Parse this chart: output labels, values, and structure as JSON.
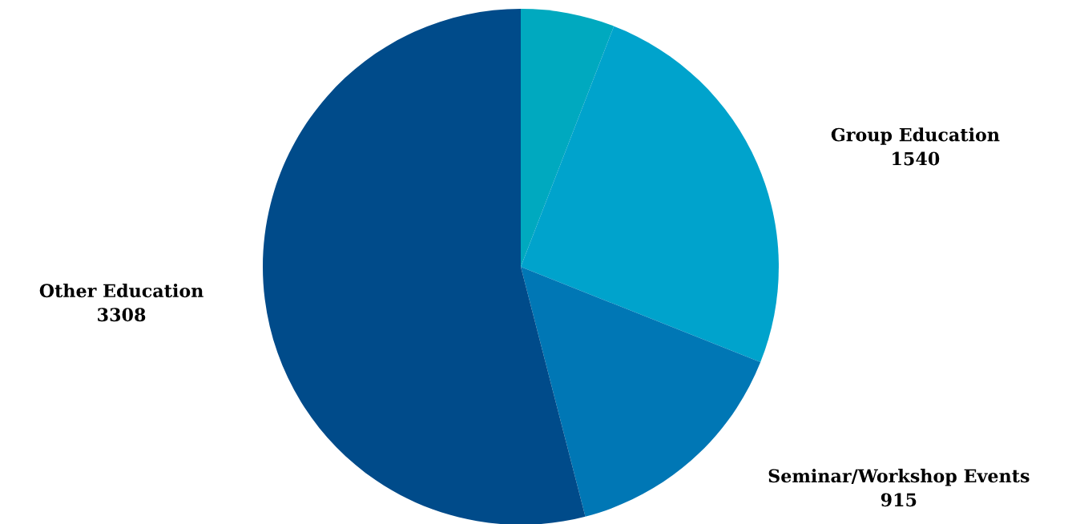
{
  "chart_data": {
    "type": "pie",
    "categories": [
      null,
      "Group Education",
      "Seminar/Workshop Events",
      "Other Education"
    ],
    "values": [
      360,
      1540,
      915,
      3308
    ],
    "value_labels": [
      null,
      "1540",
      "915",
      "3308"
    ],
    "colors": [
      "#00a9bf",
      "#00a3cc",
      "#0077b5",
      "#004b8a"
    ]
  }
}
